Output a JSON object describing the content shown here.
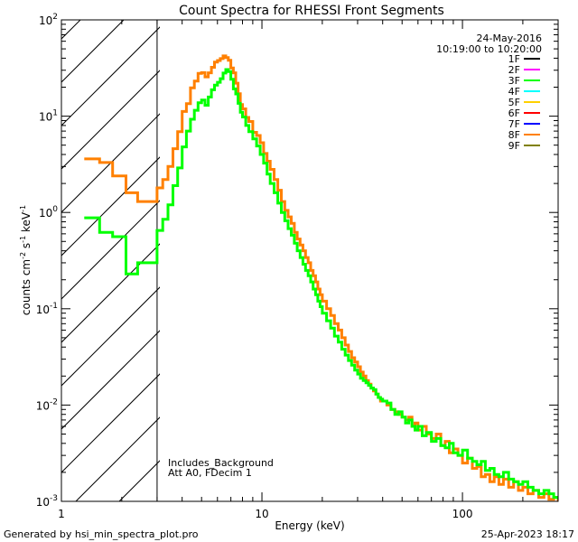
{
  "chart_data": {
    "type": "line",
    "title": "Count Spectra for RHESSI Front Segments",
    "xlabel": "Energy (keV)",
    "ylabel_base": "counts cm",
    "ylabel_exp1": "-2",
    "ylabel_mid": " s",
    "ylabel_exp2": "-1",
    "ylabel_end": " keV",
    "ylabel_exp3": "-1",
    "xscale": "log",
    "yscale": "log",
    "xlim": [
      1,
      300
    ],
    "ylim": [
      0.001,
      100
    ],
    "x_ticks": [
      {
        "value": 1,
        "label": "1"
      },
      {
        "value": 10,
        "label": "10"
      },
      {
        "value": 100,
        "label": "100"
      }
    ],
    "y_ticks": [
      {
        "value": 0.001,
        "base": "10",
        "exp": "-3"
      },
      {
        "value": 0.01,
        "base": "10",
        "exp": "-2"
      },
      {
        "value": 0.1,
        "base": "10",
        "exp": "-1"
      },
      {
        "value": 1,
        "base": "10",
        "exp": "0"
      },
      {
        "value": 10,
        "base": "10",
        "exp": "1"
      },
      {
        "value": 100,
        "base": "10",
        "exp": "2"
      }
    ],
    "shaded_region": {
      "xmin": 1,
      "xmax": 3,
      "style": "hatched"
    },
    "date": "24-May-2016",
    "time_range": "10:19:00 to 10:20:00",
    "annotations": [
      "Includes_Background",
      "Att A0, FDecim 1"
    ],
    "footer_left": "Generated by hsi_min_spectra_plot.pro",
    "footer_right": "25-Apr-2023 18:17",
    "legend_location": "top-right",
    "legend": [
      {
        "label": "1F",
        "color": "#000000"
      },
      {
        "label": "2F",
        "color": "#ff00ff"
      },
      {
        "label": "3F",
        "color": "#00ff00"
      },
      {
        "label": "4F",
        "color": "#00ffff"
      },
      {
        "label": "5F",
        "color": "#ffd000"
      },
      {
        "label": "6F",
        "color": "#ff0000"
      },
      {
        "label": "7F",
        "color": "#0000ff"
      },
      {
        "label": "8F",
        "color": "#ff8000"
      },
      {
        "label": "9F",
        "color": "#808000"
      }
    ],
    "series": [
      {
        "name": "8F",
        "color": "#ff8000",
        "x": [
          1.3,
          1.55,
          1.8,
          2.1,
          2.4,
          3.0,
          3.2,
          3.4,
          3.6,
          3.8,
          4.0,
          4.2,
          4.4,
          4.6,
          4.8,
          5.0,
          5.2,
          5.4,
          5.6,
          5.8,
          6.0,
          6.2,
          6.4,
          6.6,
          6.8,
          7.0,
          7.2,
          7.4,
          7.6,
          7.8,
          8.0,
          8.3,
          8.6,
          9.0,
          9.4,
          9.8,
          10.2,
          10.6,
          11.0,
          11.5,
          12.0,
          12.5,
          13.0,
          13.5,
          14.0,
          14.5,
          15.0,
          15.5,
          16.0,
          16.5,
          17.0,
          17.5,
          18.0,
          18.5,
          19.0,
          19.5,
          20.0,
          21.0,
          22.0,
          23.0,
          24.0,
          25.0,
          26.0,
          27.0,
          28.0,
          29.0,
          30.0,
          31.0,
          32.0,
          33.0,
          34.0,
          35.0,
          36.0,
          37.0,
          38.0,
          39.0,
          40.0,
          42.0,
          44.0,
          46.0,
          48.0,
          50.0,
          52.0,
          54.0,
          56.0,
          58.0,
          60.0,
          63.0,
          66.0,
          70.0,
          74.0,
          78.0,
          82.0,
          86.0,
          90.0,
          95.0,
          100.0,
          106.0,
          112.0,
          118.0,
          124.0,
          130.0,
          137.0,
          144.0,
          152.0,
          160.0,
          170.0,
          180.0,
          190.0,
          200.0,
          212.0,
          225.0,
          240.0,
          255.0,
          270.0,
          285.0,
          300.0
        ],
        "y": [
          3.6,
          3.3,
          2.4,
          1.6,
          1.3,
          1.8,
          2.2,
          3.0,
          4.6,
          6.9,
          11.2,
          13.5,
          19.7,
          23.1,
          27.8,
          28.3,
          25.6,
          28.2,
          32.2,
          36.5,
          37.8,
          39.6,
          42.2,
          40.6,
          38.0,
          31.7,
          28.2,
          22.0,
          17.1,
          13.2,
          11.9,
          9.7,
          8.8,
          6.8,
          6.3,
          5.3,
          4.1,
          3.4,
          2.8,
          2.2,
          1.7,
          1.3,
          1.05,
          0.9,
          0.77,
          0.62,
          0.53,
          0.46,
          0.4,
          0.34,
          0.3,
          0.25,
          0.22,
          0.19,
          0.16,
          0.14,
          0.12,
          0.1,
          0.085,
          0.07,
          0.06,
          0.05,
          0.042,
          0.036,
          0.031,
          0.028,
          0.025,
          0.022,
          0.02,
          0.018,
          0.0165,
          0.015,
          0.014,
          0.013,
          0.012,
          0.011,
          0.011,
          0.01,
          0.009,
          0.0085,
          0.008,
          0.0075,
          0.007,
          0.0075,
          0.006,
          0.0065,
          0.0055,
          0.006,
          0.005,
          0.0045,
          0.005,
          0.0038,
          0.0042,
          0.0032,
          0.0035,
          0.003,
          0.0025,
          0.0028,
          0.0022,
          0.0023,
          0.0018,
          0.0019,
          0.0016,
          0.0018,
          0.0015,
          0.0017,
          0.0014,
          0.0016,
          0.0013,
          0.0014,
          0.0012,
          0.0013,
          0.0011,
          0.0012,
          0.00105,
          0.0011,
          0.001
        ]
      },
      {
        "name": "3F",
        "color": "#00ff00",
        "x": [
          1.3,
          1.55,
          1.8,
          2.1,
          2.4,
          3.0,
          3.2,
          3.4,
          3.6,
          3.8,
          4.0,
          4.2,
          4.4,
          4.6,
          4.8,
          5.0,
          5.2,
          5.4,
          5.6,
          5.8,
          6.0,
          6.2,
          6.4,
          6.6,
          6.8,
          7.0,
          7.2,
          7.4,
          7.6,
          7.8,
          8.0,
          8.3,
          8.6,
          9.0,
          9.4,
          9.8,
          10.2,
          10.6,
          11.0,
          11.5,
          12.0,
          12.5,
          13.0,
          13.5,
          14.0,
          14.5,
          15.0,
          15.5,
          16.0,
          16.5,
          17.0,
          17.5,
          18.0,
          18.5,
          19.0,
          19.5,
          20.0,
          21.0,
          22.0,
          23.0,
          24.0,
          25.0,
          26.0,
          27.0,
          28.0,
          29.0,
          30.0,
          31.0,
          32.0,
          33.0,
          34.0,
          35.0,
          36.0,
          37.0,
          38.0,
          39.0,
          40.0,
          42.0,
          44.0,
          46.0,
          48.0,
          50.0,
          52.0,
          54.0,
          56.0,
          58.0,
          60.0,
          63.0,
          66.0,
          70.0,
          74.0,
          78.0,
          82.0,
          86.0,
          90.0,
          95.0,
          100.0,
          106.0,
          112.0,
          118.0,
          124.0,
          130.0,
          137.0,
          144.0,
          152.0,
          160.0,
          170.0,
          180.0,
          190.0,
          200.0,
          212.0,
          225.0,
          240.0,
          255.0,
          270.0,
          285.0,
          300.0
        ],
        "y": [
          0.88,
          0.62,
          0.56,
          0.23,
          0.3,
          0.65,
          0.85,
          1.2,
          1.9,
          2.9,
          4.8,
          7.0,
          9.3,
          11.5,
          13.8,
          14.7,
          13.0,
          15.8,
          18.8,
          21.0,
          22.5,
          24.5,
          28.0,
          30.5,
          29.0,
          24.2,
          19.2,
          17.0,
          13.6,
          11.0,
          9.8,
          8.0,
          6.9,
          5.8,
          4.9,
          4.0,
          3.25,
          2.5,
          2.0,
          1.6,
          1.25,
          1.0,
          0.82,
          0.68,
          0.58,
          0.48,
          0.4,
          0.34,
          0.29,
          0.25,
          0.22,
          0.19,
          0.16,
          0.14,
          0.12,
          0.105,
          0.09,
          0.075,
          0.063,
          0.052,
          0.045,
          0.038,
          0.033,
          0.029,
          0.026,
          0.023,
          0.021,
          0.019,
          0.018,
          0.017,
          0.016,
          0.015,
          0.0145,
          0.013,
          0.012,
          0.0115,
          0.011,
          0.0105,
          0.009,
          0.008,
          0.0085,
          0.0075,
          0.0065,
          0.007,
          0.006,
          0.0055,
          0.006,
          0.0048,
          0.0052,
          0.0042,
          0.0045,
          0.0038,
          0.0036,
          0.004,
          0.0032,
          0.003,
          0.0034,
          0.0028,
          0.0026,
          0.0024,
          0.0026,
          0.0021,
          0.0022,
          0.0019,
          0.0018,
          0.002,
          0.0017,
          0.0016,
          0.0015,
          0.0016,
          0.0014,
          0.0013,
          0.0012,
          0.0013,
          0.0012,
          0.0011,
          0.00105
        ]
      }
    ]
  }
}
